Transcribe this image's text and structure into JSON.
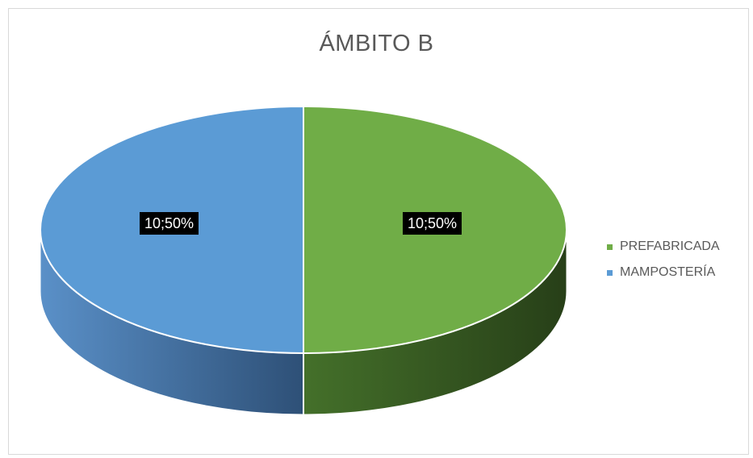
{
  "chart_data": {
    "type": "pie",
    "title": "ÁMBITO B",
    "slices": [
      {
        "name": "PREFABRICADA",
        "value": 10,
        "percent": 50,
        "label": "10;50%",
        "color": "#70ad47"
      },
      {
        "name": "MAMPOSTERÍA",
        "value": 10,
        "percent": 50,
        "label": "10;50%",
        "color": "#5b9bd5"
      }
    ],
    "legend_position": "right",
    "style": "3d-pie"
  }
}
